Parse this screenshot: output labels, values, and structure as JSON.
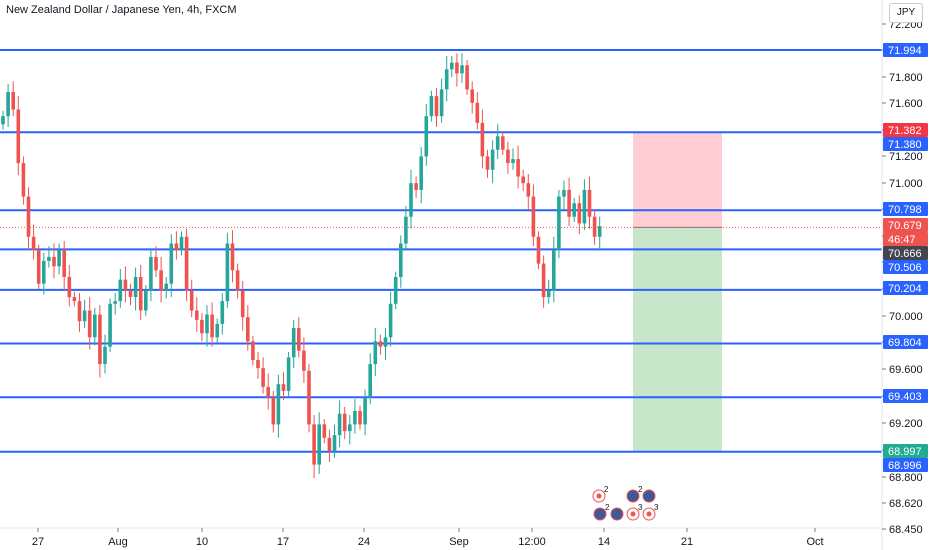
{
  "title": "New Zealand Dollar / Japanese Yen, 4h, FXCM",
  "currency": "JPY",
  "colors": {
    "level_line": "#2962ff",
    "up_candle": "#26a69a",
    "down_candle": "#ef5350",
    "stop_zone": "#ffcdd2",
    "target_zone": "#c8e6c9",
    "stop_label": "#f23645",
    "target_label": "#22ab94",
    "current_label": "#434651",
    "axis_text": "#131722"
  },
  "chart_data": {
    "type": "candlestick",
    "y_axis_ticks": [
      "72.200",
      "72.000",
      "71.800",
      "71.600",
      "71.400",
      "71.200",
      "71.000",
      "70.800",
      "70.600",
      "70.400",
      "70.200",
      "70.000",
      "69.800",
      "69.600",
      "69.400",
      "69.200",
      "69.000",
      "68.800",
      "68.620",
      "68.450"
    ],
    "x_axis_ticks": [
      "27",
      "Aug",
      "10",
      "17",
      "24",
      "Sep",
      "12:00",
      "14",
      "21",
      "Oct"
    ],
    "ylim": [
      68.45,
      72.3
    ],
    "horizontal_levels": [
      71.994,
      71.38,
      70.798,
      70.506,
      70.204,
      69.804,
      69.403,
      68.996
    ],
    "price_labels": [
      {
        "text": "71.994",
        "kind": "level"
      },
      {
        "text": "71.382",
        "kind": "stop"
      },
      {
        "text": "71.380",
        "kind": "level"
      },
      {
        "text": "70.798",
        "kind": "level"
      },
      {
        "text": "70.679",
        "kind": "last"
      },
      {
        "text": "46:47",
        "kind": "countdown"
      },
      {
        "text": "70.666",
        "kind": "current"
      },
      {
        "text": "70.506",
        "kind": "level"
      },
      {
        "text": "70.204",
        "kind": "level"
      },
      {
        "text": "69.804",
        "kind": "level"
      },
      {
        "text": "69.403",
        "kind": "level"
      },
      {
        "text": "68.997",
        "kind": "target"
      },
      {
        "text": "68.996",
        "kind": "level"
      }
    ],
    "position": {
      "type": "short",
      "entry": 70.67,
      "stop": 71.382,
      "target": 68.997
    },
    "path_anchors": [
      [
        0,
        71.5
      ],
      [
        1,
        71.68
      ],
      [
        2,
        71.55
      ],
      [
        3,
        71.15
      ],
      [
        4,
        70.9
      ],
      [
        5,
        70.6
      ],
      [
        6,
        70.5
      ],
      [
        7,
        70.25
      ],
      [
        8,
        70.42
      ],
      [
        9,
        70.45
      ],
      [
        10,
        70.38
      ],
      [
        11,
        70.5
      ],
      [
        12,
        70.3
      ],
      [
        13,
        70.15
      ],
      [
        14,
        70.12
      ],
      [
        15,
        69.97
      ],
      [
        16,
        70.05
      ],
      [
        17,
        69.85
      ],
      [
        18,
        70.02
      ],
      [
        19,
        69.65
      ],
      [
        20,
        69.78
      ],
      [
        21,
        70.1
      ],
      [
        22,
        70.12
      ],
      [
        23,
        70.28
      ],
      [
        24,
        70.2
      ],
      [
        25,
        70.15
      ],
      [
        26,
        70.3
      ],
      [
        27,
        70.05
      ],
      [
        28,
        70.2
      ],
      [
        29,
        70.45
      ],
      [
        30,
        70.35
      ],
      [
        31,
        70.2
      ],
      [
        32,
        70.25
      ],
      [
        33,
        70.55
      ],
      [
        34,
        70.5
      ],
      [
        35,
        70.6
      ],
      [
        36,
        70.2
      ],
      [
        37,
        70.05
      ],
      [
        38,
        69.98
      ],
      [
        39,
        69.88
      ],
      [
        40,
        70.02
      ],
      [
        41,
        69.85
      ],
      [
        42,
        69.95
      ],
      [
        43,
        70.12
      ],
      [
        44,
        70.55
      ],
      [
        45,
        70.35
      ],
      [
        46,
        70.2
      ],
      [
        47,
        70.0
      ],
      [
        48,
        69.82
      ],
      [
        49,
        69.68
      ],
      [
        50,
        69.62
      ],
      [
        51,
        69.48
      ],
      [
        52,
        69.4
      ],
      [
        53,
        69.2
      ],
      [
        54,
        69.5
      ],
      [
        55,
        69.45
      ],
      [
        56,
        69.7
      ],
      [
        57,
        69.92
      ],
      [
        58,
        69.75
      ],
      [
        59,
        69.6
      ],
      [
        60,
        69.2
      ],
      [
        61,
        68.9
      ],
      [
        62,
        69.2
      ],
      [
        63,
        69.1
      ],
      [
        64,
        69.0
      ],
      [
        65,
        69.12
      ],
      [
        66,
        69.28
      ],
      [
        67,
        69.15
      ],
      [
        68,
        69.2
      ],
      [
        69,
        69.3
      ],
      [
        70,
        69.2
      ],
      [
        71,
        69.4
      ],
      [
        72,
        69.65
      ],
      [
        73,
        69.82
      ],
      [
        74,
        69.78
      ],
      [
        75,
        69.85
      ],
      [
        76,
        70.1
      ],
      [
        77,
        70.3
      ],
      [
        78,
        70.55
      ],
      [
        79,
        70.75
      ],
      [
        80,
        71.0
      ],
      [
        81,
        70.95
      ],
      [
        82,
        71.2
      ],
      [
        83,
        71.5
      ],
      [
        84,
        71.65
      ],
      [
        85,
        71.5
      ],
      [
        86,
        71.7
      ],
      [
        87,
        71.85
      ],
      [
        88,
        71.9
      ],
      [
        89,
        71.82
      ],
      [
        90,
        71.88
      ],
      [
        91,
        71.7
      ],
      [
        92,
        71.6
      ],
      [
        93,
        71.45
      ],
      [
        94,
        71.2
      ],
      [
        95,
        71.1
      ],
      [
        96,
        71.25
      ],
      [
        97,
        71.35
      ],
      [
        98,
        71.25
      ],
      [
        99,
        71.15
      ],
      [
        100,
        71.18
      ],
      [
        101,
        71.05
      ],
      [
        102,
        71.0
      ],
      [
        103,
        70.9
      ],
      [
        104,
        70.6
      ],
      [
        105,
        70.4
      ],
      [
        106,
        70.15
      ],
      [
        107,
        70.2
      ],
      [
        108,
        70.5
      ],
      [
        109,
        70.9
      ],
      [
        110,
        70.95
      ],
      [
        111,
        70.75
      ],
      [
        112,
        70.85
      ],
      [
        113,
        70.7
      ],
      [
        114,
        70.95
      ],
      [
        115,
        70.75
      ],
      [
        116,
        70.6
      ],
      [
        117,
        70.68
      ]
    ]
  }
}
